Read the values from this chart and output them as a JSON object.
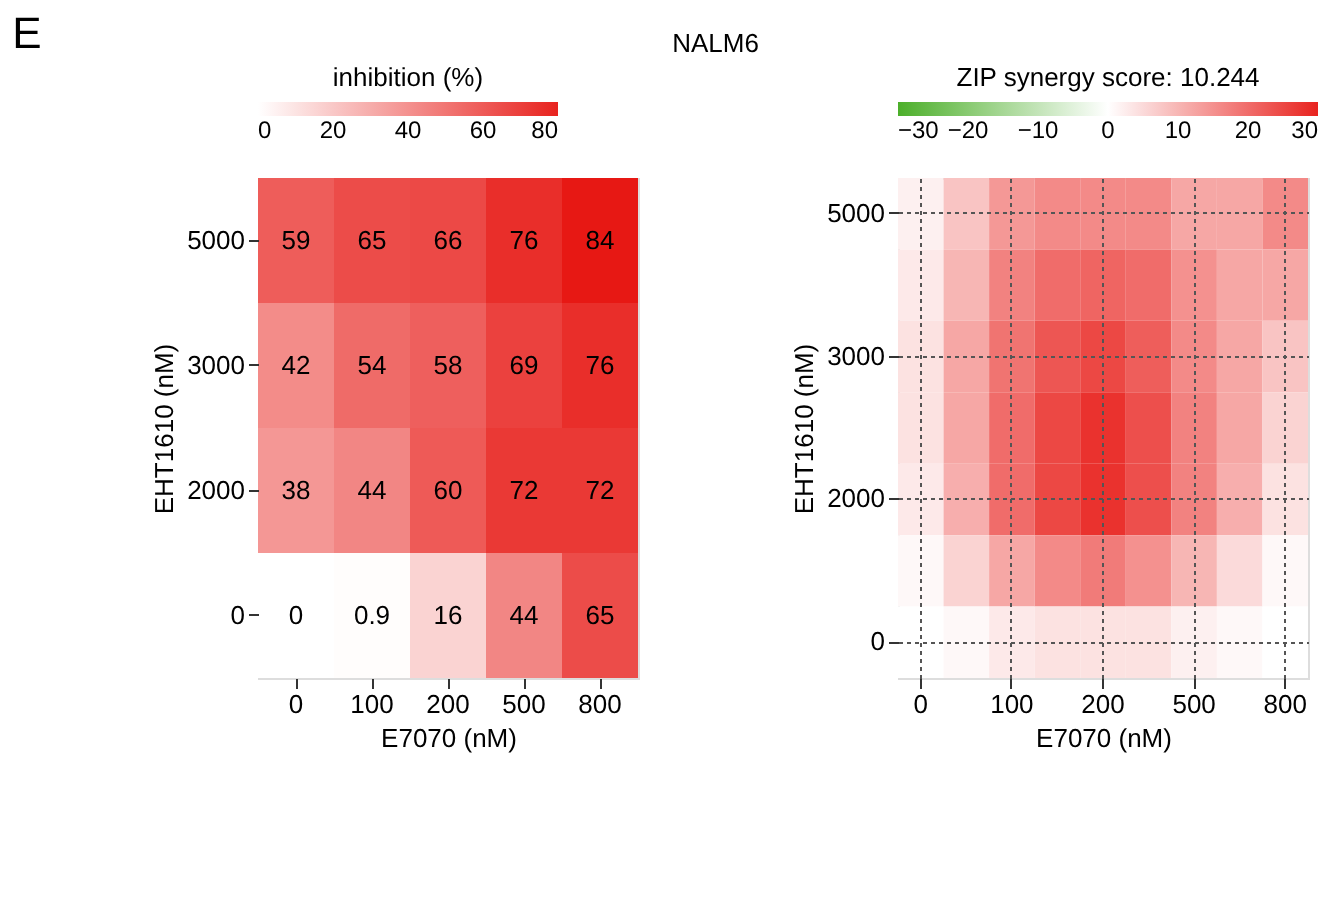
{
  "chart_data": [
    {
      "type": "heatmap",
      "annotations": [
        "E"
      ],
      "legend_title": "inhibition (%)",
      "xlabel": "E7070 (nM)",
      "ylabel": "EHT1610 (nM)",
      "categories": [
        "0",
        "100",
        "200",
        "500",
        "800"
      ],
      "y_categories": [
        "5000",
        "3000",
        "2000",
        "0"
      ],
      "cells": [
        [
          59,
          65,
          66,
          76,
          84
        ],
        [
          42,
          54,
          58,
          69,
          76
        ],
        [
          38,
          44,
          60,
          72,
          72
        ],
        [
          0,
          0.9,
          16,
          44,
          65
        ]
      ],
      "data_labels": true,
      "clim": [
        0,
        80
      ],
      "cticks": [
        0,
        20,
        40,
        60,
        80
      ],
      "colors": [
        "#ffffff",
        "#e8231f"
      ]
    },
    {
      "type": "heatmap",
      "title": "NALM6",
      "legend_title": "ZIP synergy score: 10.244",
      "xlabel": "E7070 (nM)",
      "ylabel": "EHT1610 (nM)",
      "categories": [
        "0",
        null,
        "100",
        null,
        "200",
        null,
        "500",
        null,
        "800"
      ],
      "y_categories": [
        "5000",
        null,
        "3000",
        null,
        "2000",
        null,
        "0"
      ],
      "cells": [
        [
          2,
          8,
          14,
          16,
          16,
          16,
          12,
          12,
          16
        ],
        [
          3,
          10,
          17,
          20,
          21,
          20,
          15,
          12,
          12
        ],
        [
          4,
          12,
          19,
          23,
          25,
          22,
          16,
          12,
          8
        ],
        [
          4,
          12,
          20,
          25,
          28,
          24,
          17,
          12,
          6
        ],
        [
          3,
          11,
          20,
          25,
          28,
          24,
          17,
          11,
          4
        ],
        [
          1,
          6,
          12,
          16,
          18,
          15,
          10,
          5,
          1
        ],
        [
          0,
          1,
          3,
          4,
          4,
          4,
          2,
          1,
          0
        ]
      ],
      "clim": [
        -30,
        30
      ],
      "cticks": [
        -30,
        -20,
        -10,
        0,
        10,
        20,
        30
      ],
      "colors": [
        "#4caf2a",
        "#ffffff",
        "#e8231f"
      ],
      "grid": true
    }
  ]
}
